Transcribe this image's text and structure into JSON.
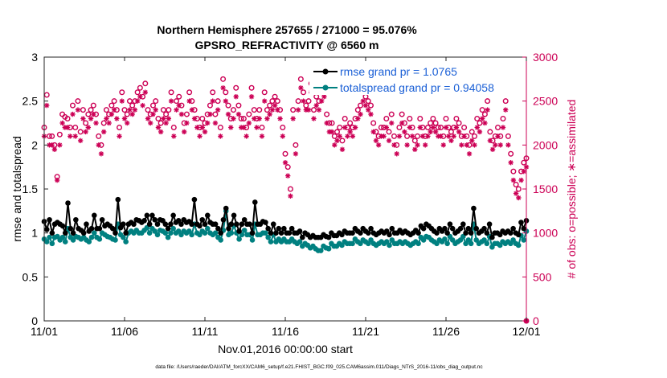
{
  "chart_data": {
    "type": "line",
    "title": "Northern Hemisphere 257655 / 271000 = 95.076%",
    "subtitle": "GPSRO_REFRACTIVITY @ 6560 m",
    "xlabel": "Nov.01,2016 00:00:00 start",
    "ylabel_left": "rmse and totalspread",
    "ylabel_right": "# of obs: o=possible; ∗=assimilated",
    "footnote": "data file: /Users/raeder/DAI/ATM_forcXX/CAM6_setup/f.e21.FHIST_BGC.f09_025.CAM6assim.011/Diags_NTrS_2016-11/obs_diag_output.nc",
    "xlim": [
      0,
      30
    ],
    "ylim_left": [
      0,
      3
    ],
    "ylim_right": [
      0,
      3000
    ],
    "x_tick_labels": [
      "11/01",
      "11/06",
      "11/11",
      "11/16",
      "11/21",
      "11/26",
      "12/01"
    ],
    "y_ticks_left": [
      "0",
      "0.5",
      "1",
      "1.5",
      "2",
      "2.5",
      "3"
    ],
    "y_ticks_right": [
      "0",
      "500",
      "1000",
      "1500",
      "2000",
      "2500",
      "3000"
    ],
    "legend": [
      "rmse grand pr = 1.0765",
      "totalspread grand pr = 0.94058"
    ],
    "legend_position": "top-right",
    "colors": {
      "rmse": "#000000",
      "spread": "#008080",
      "obs": "#cc0055",
      "legend_text": "#1a5fd6"
    },
    "series": [
      {
        "name": "rmse",
        "values": [
          1.13,
          1.04,
          1.15,
          1.0,
          1.1,
          1.12,
          1.1,
          1.08,
          1.0,
          1.34,
          1.05,
          1.0,
          1.15,
          1.05,
          1.03,
          1.0,
          1.1,
          1.02,
          1.05,
          1.2,
          1.05,
          1.05,
          1.15,
          1.08,
          1.1,
          1.08,
          1.05,
          1.0,
          1.38,
          1.06,
          1.1,
          1.0,
          1.1,
          1.12,
          1.1,
          1.15,
          1.14,
          1.12,
          1.14,
          1.2,
          1.1,
          1.2,
          1.15,
          1.1,
          1.15,
          1.14,
          1.1,
          1.05,
          1.1,
          1.2,
          1.12,
          1.14,
          1.1,
          1.15,
          1.12,
          1.13,
          1.1,
          1.38,
          1.1,
          1.08,
          1.15,
          1.1,
          1.2,
          1.12,
          1.1,
          1.1,
          1.05,
          1.0,
          1.15,
          1.28,
          1.05,
          1.1,
          1.2,
          1.1,
          1.02,
          1.1,
          1.15,
          1.1,
          1.1,
          1.0,
          1.35,
          1.1,
          1.1,
          1.13,
          1.12,
          1.05,
          1.0,
          1.1,
          1.0,
          1.05,
          1.0,
          1.05,
          1.0,
          1.0,
          1.05,
          1.0,
          1.0,
          1.02,
          0.95,
          1.0,
          0.98,
          0.95,
          0.97,
          0.95,
          0.95,
          0.95,
          0.98,
          0.96,
          0.95,
          1.0,
          0.97,
          0.97,
          1.0,
          0.98,
          1.02,
          1.0,
          1.0,
          1.0,
          1.05,
          1.02,
          1.0,
          1.05,
          1.02,
          1.0,
          1.05,
          1.0,
          0.98,
          1.0,
          1.02,
          1.0,
          1.02,
          0.98,
          1.05,
          1.0,
          1.0,
          1.03,
          1.0,
          1.02,
          1.0,
          0.98,
          1.0,
          1.03,
          1.0,
          1.08,
          1.05,
          1.1,
          1.08,
          1.05,
          1.02,
          1.0,
          1.05,
          1.02,
          1.05,
          1.0,
          1.1,
          1.05,
          1.0,
          1.02,
          1.05,
          1.1,
          1.0,
          1.05,
          1.0,
          1.28,
          1.05,
          1.0,
          1.02,
          1.05,
          1.0,
          1.1,
          0.95,
          1.0,
          1.0,
          0.98,
          1.02,
          1.0,
          1.02,
          1.0,
          1.05,
          1.0,
          0.98,
          1.12,
          1.05,
          1.14
        ]
      },
      {
        "name": "totalspread",
        "values": [
          0.93,
          0.9,
          0.95,
          0.88,
          0.95,
          0.96,
          0.92,
          0.95,
          0.9,
          1.05,
          0.95,
          0.92,
          0.96,
          0.95,
          0.93,
          0.95,
          0.92,
          0.9,
          0.95,
          1.0,
          0.95,
          0.93,
          1.0,
          0.98,
          0.96,
          0.95,
          0.93,
          0.92,
          1.1,
          0.98,
          0.95,
          0.9,
          1.0,
          1.02,
          1.0,
          1.03,
          1.0,
          1.0,
          1.03,
          1.06,
          1.0,
          1.05,
          1.02,
          0.98,
          1.03,
          1.02,
          1.0,
          0.95,
          1.0,
          1.05,
          1.0,
          1.02,
          0.98,
          1.02,
          1.0,
          1.02,
          0.98,
          1.1,
          1.0,
          0.98,
          1.02,
          1.0,
          1.05,
          1.0,
          0.98,
          1.0,
          0.95,
          0.92,
          1.03,
          1.25,
          0.98,
          1.0,
          1.08,
          1.0,
          0.93,
          0.98,
          1.03,
          0.98,
          0.98,
          0.92,
          1.1,
          0.98,
          0.98,
          1.0,
          1.0,
          0.95,
          0.9,
          0.98,
          0.9,
          0.93,
          0.9,
          0.93,
          0.9,
          0.9,
          0.93,
          0.9,
          0.88,
          0.9,
          0.85,
          0.88,
          0.86,
          0.83,
          0.85,
          0.82,
          0.8,
          0.8,
          0.85,
          0.83,
          0.82,
          0.88,
          0.85,
          0.85,
          0.88,
          0.86,
          0.9,
          0.88,
          0.88,
          0.88,
          0.93,
          0.9,
          0.88,
          0.92,
          0.9,
          0.88,
          0.92,
          0.88,
          0.86,
          0.88,
          0.9,
          0.88,
          0.9,
          0.86,
          0.92,
          0.88,
          0.88,
          0.9,
          0.88,
          0.9,
          0.88,
          0.86,
          0.88,
          0.9,
          0.88,
          0.95,
          0.92,
          0.96,
          0.95,
          0.92,
          0.9,
          0.88,
          0.92,
          0.9,
          0.93,
          0.88,
          0.96,
          0.92,
          0.88,
          0.9,
          0.92,
          0.96,
          0.88,
          0.92,
          0.88,
          1.1,
          0.92,
          0.88,
          0.9,
          0.92,
          0.88,
          0.96,
          0.84,
          0.88,
          0.88,
          0.86,
          0.9,
          0.88,
          0.9,
          0.88,
          0.92,
          0.88,
          0.86,
          0.97,
          0.92,
          1.02
        ]
      },
      {
        "name": "obs_possible",
        "values": [
          2200,
          2570,
          2100,
          2100,
          2000,
          1640,
          2120,
          2350,
          2320,
          2300,
          2200,
          2450,
          2200,
          2500,
          2150,
          2400,
          2250,
          2350,
          2400,
          2450,
          2350,
          2100,
          2000,
          2250,
          2400,
          2350,
          2450,
          2500,
          2400,
          2200,
          2600,
          2400,
          2350,
          2500,
          2450,
          2500,
          2600,
          2650,
          2550,
          2700,
          2400,
          2350,
          2450,
          2500,
          2300,
          2250,
          2400,
          2350,
          2400,
          2600,
          2200,
          2500,
          2550,
          2450,
          2250,
          2350,
          2600,
          2500,
          2400,
          2300,
          2200,
          2300,
          2250,
          2350,
          2450,
          2600,
          2350,
          2500,
          2200,
          2750,
          2600,
          2450,
          2300,
          2400,
          2650,
          2450,
          2300,
          2300,
          2200,
          2350,
          2650,
          2400,
          2300,
          2400,
          2200,
          2600,
          2400,
          2450,
          2500,
          2550,
          2500,
          2400,
          2200,
          1900,
          1750,
          1500,
          2400,
          2000,
          2500,
          2750,
          2600,
          2450,
          2500,
          2700,
          2400,
          2550,
          2500,
          2600,
          2650,
          2350,
          2250,
          2250,
          2100,
          2150,
          2200,
          2050,
          2300,
          2200,
          2250,
          2200,
          2300,
          2400,
          2450,
          2600,
          2550,
          2500,
          2450,
          2250,
          2150,
          2100,
          2200,
          2200,
          2300,
          2150,
          2350,
          2100,
          2000,
          2200,
          2350,
          2250,
          2100,
          2300,
          2200,
          2050,
          2100,
          2300,
          2200,
          2100,
          2200,
          2250,
          2300,
          2250,
          2200,
          2200,
          2100,
          2300,
          2200,
          2150,
          2200,
          2300,
          2250,
          2100,
          2200,
          2100,
          2000,
          2150,
          2100,
          2300,
          2250,
          2400,
          2350,
          2500,
          2150,
          2050,
          2100,
          2200,
          2100,
          2300,
          2500,
          2100,
          1900,
          1700,
          1550,
          1500,
          1700,
          1800,
          1850
        ]
      },
      {
        "name": "obs_assimilated",
        "values": [
          2100,
          2450,
          2000,
          2000,
          1950,
          1600,
          2000,
          2250,
          2200,
          2200,
          2100,
          2350,
          2100,
          2400,
          2050,
          2300,
          2150,
          2200,
          2300,
          2350,
          2250,
          2000,
          1900,
          2150,
          2300,
          2250,
          2350,
          2400,
          2300,
          2100,
          2500,
          2300,
          2250,
          2400,
          2350,
          2400,
          2500,
          2550,
          2450,
          2600,
          2300,
          2250,
          2350,
          2400,
          2200,
          2150,
          2300,
          2250,
          2300,
          2500,
          2100,
          2400,
          2450,
          2350,
          2150,
          2250,
          2500,
          2400,
          2300,
          2200,
          2100,
          2200,
          2150,
          2250,
          2350,
          2500,
          2250,
          2400,
          2100,
          2650,
          2500,
          2350,
          2200,
          2300,
          2550,
          2350,
          2200,
          2200,
          2100,
          2250,
          2550,
          2300,
          2200,
          2300,
          2100,
          2500,
          2300,
          2350,
          2400,
          2450,
          2400,
          2300,
          2100,
          1800,
          1650,
          1420,
          2300,
          1900,
          2400,
          2650,
          2500,
          2400,
          2400,
          2600,
          2300,
          2450,
          2400,
          2500,
          2550,
          2250,
          2150,
          2150,
          2000,
          2050,
          2100,
          1950,
          2200,
          2100,
          2150,
          2100,
          2200,
          2300,
          2350,
          2500,
          2450,
          2400,
          2350,
          2150,
          2050,
          2000,
          2100,
          2100,
          2200,
          2050,
          2250,
          2000,
          1900,
          2100,
          2250,
          2150,
          2000,
          2200,
          2100,
          1950,
          2000,
          2200,
          2100,
          2000,
          2100,
          2150,
          2200,
          2150,
          2100,
          2100,
          2000,
          2200,
          2100,
          2050,
          2100,
          2200,
          2150,
          2000,
          2100,
          2000,
          1900,
          2050,
          2000,
          2200,
          2150,
          2300,
          2250,
          2400,
          2050,
          1950,
          2000,
          2100,
          2000,
          2200,
          2400,
          2000,
          1800,
          1600,
          1450,
          1400,
          1600,
          1700,
          1750
        ]
      }
    ]
  }
}
